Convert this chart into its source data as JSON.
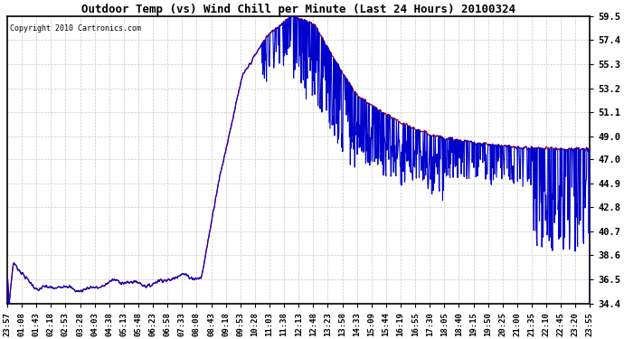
{
  "title": "Outdoor Temp (vs) Wind Chill per Minute (Last 24 Hours) 20100324",
  "copyright": "Copyright 2010 Cartronics.com",
  "yticks": [
    34.4,
    36.5,
    38.6,
    40.7,
    42.8,
    44.9,
    47.0,
    49.0,
    51.1,
    53.2,
    55.3,
    57.4,
    59.5
  ],
  "ymin": 34.4,
  "ymax": 59.5,
  "bg_color": "#ffffff",
  "grid_color": "#c8c8c8",
  "temp_color": "#cc0000",
  "wind_color": "#0000cc",
  "xtick_labels": [
    "23:57",
    "01:08",
    "01:43",
    "02:18",
    "02:53",
    "03:28",
    "04:03",
    "04:38",
    "05:13",
    "05:48",
    "06:23",
    "06:58",
    "07:33",
    "08:08",
    "08:43",
    "09:18",
    "09:53",
    "10:28",
    "11:03",
    "11:38",
    "12:13",
    "12:48",
    "13:23",
    "13:58",
    "14:33",
    "15:09",
    "15:44",
    "16:19",
    "16:55",
    "17:30",
    "18:05",
    "18:40",
    "19:15",
    "19:50",
    "20:25",
    "21:00",
    "21:35",
    "22:10",
    "22:45",
    "23:20",
    "23:55"
  ],
  "n_points": 1440
}
